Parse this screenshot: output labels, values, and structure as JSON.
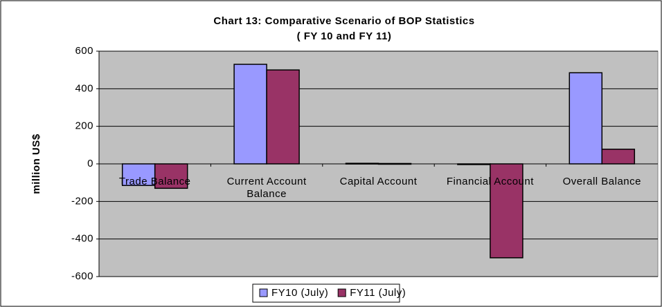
{
  "chart_data": {
    "type": "bar",
    "title": "Chart 13: Comparative Scenario of BOP Statistics",
    "subtitle": "( FY 10 and FY 11)",
    "y_label": "million US$",
    "categories": [
      "Trade Balance",
      "Current Account Balance",
      "Capital Account",
      "Financial Account",
      "Overall Balance"
    ],
    "series": [
      {
        "name": "FY10 (July)",
        "color": "#9999ff",
        "values": [
          -115,
          530,
          3,
          -3,
          485
        ]
      },
      {
        "name": "FY11 (July)",
        "color": "#993366",
        "values": [
          -130,
          500,
          2,
          -500,
          78
        ]
      }
    ],
    "ylim": [
      -600,
      600
    ],
    "yticks": [
      -600,
      -400,
      -200,
      0,
      200,
      400,
      600
    ],
    "grid": true
  }
}
